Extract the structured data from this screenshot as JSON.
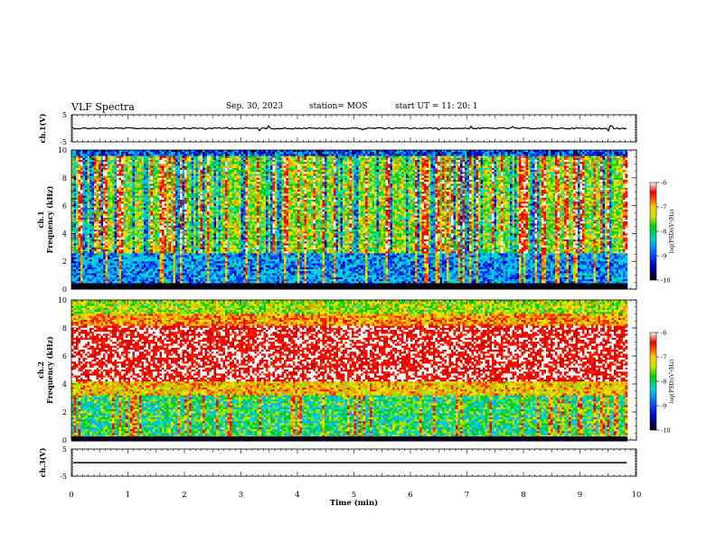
{
  "header": {
    "title": "VLF Spectra",
    "date": "Sep. 30, 2023",
    "station": "station= MOS",
    "start": "start  UT =   11: 20: 1"
  },
  "chart_data": [
    {
      "type": "line",
      "panel": "ch1-waveform",
      "ylabel": "ch.1(V)",
      "ylim": [
        -5,
        5
      ],
      "yticks": [
        5,
        -5
      ],
      "xlim": [
        0,
        10
      ],
      "series": [
        {
          "values": []
        }
      ]
    },
    {
      "type": "heatmap",
      "panel": "ch1-spectrogram",
      "ylabel": "ch.1\nFrequency (kHz)",
      "ylim": [
        0,
        10
      ],
      "yticks": [
        0,
        2,
        4,
        6,
        8,
        10
      ],
      "xlim": [
        0,
        10
      ],
      "data_end_min": 9.83,
      "colorbar": {
        "label": "log(PSD)(V²/Hz)",
        "range": [
          -10,
          -6
        ],
        "ticks": [
          -6,
          -7,
          -8,
          -9,
          -10
        ]
      }
    },
    {
      "type": "heatmap",
      "panel": "ch2-spectrogram",
      "ylabel": "ch.2\nFrequency (kHz)",
      "ylim": [
        0,
        10
      ],
      "yticks": [
        0,
        2,
        4,
        6,
        8,
        10
      ],
      "xlim": [
        0,
        10
      ],
      "data_end_min": 9.83,
      "colorbar": {
        "label": "log(PSD)(V²/Hz)",
        "range": [
          -10,
          -6
        ],
        "ticks": [
          -6,
          -7,
          -8,
          -9,
          -10
        ]
      }
    },
    {
      "type": "line",
      "panel": "ch3-waveform",
      "ylabel": "ch.3(V)",
      "ylim": [
        -5,
        5
      ],
      "yticks": [
        5,
        -5
      ],
      "xlim": [
        0,
        10
      ],
      "xlabel": "Time  (min)",
      "xticks": [
        0,
        1,
        2,
        3,
        4,
        5,
        6,
        7,
        8,
        9,
        10
      ],
      "series": [
        {
          "values": []
        }
      ]
    }
  ]
}
